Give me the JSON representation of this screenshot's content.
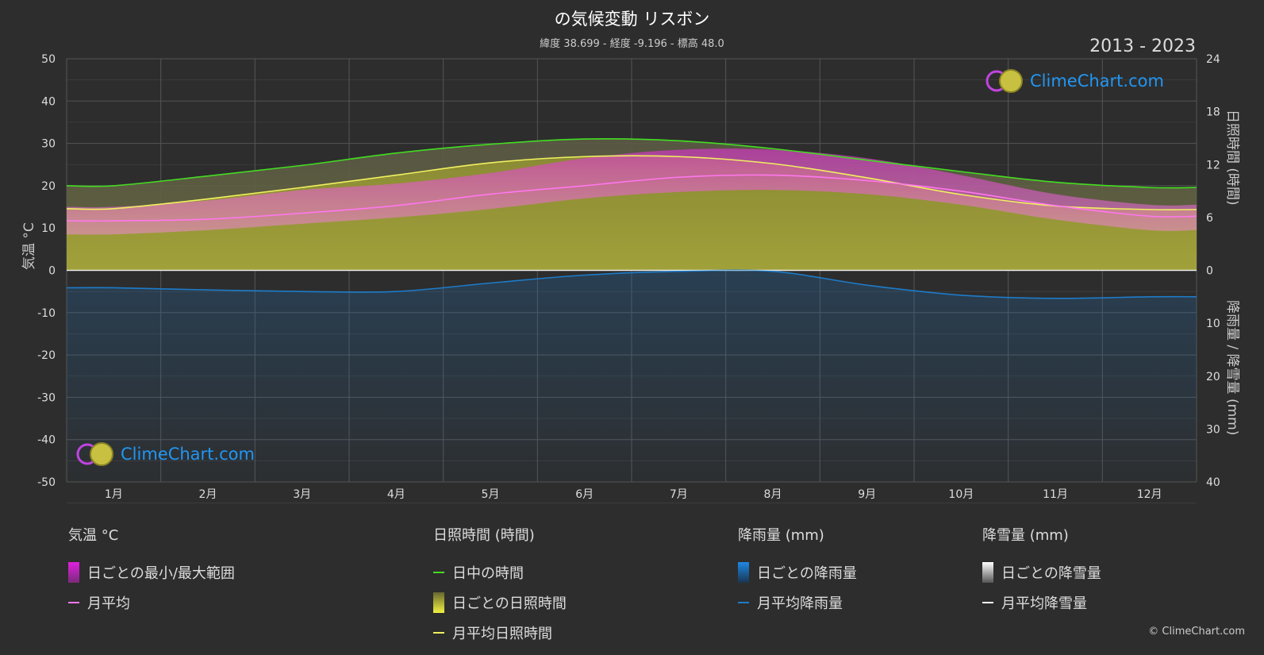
{
  "header": {
    "title": "の気候変動 リスボン",
    "subtitle": "緯度 38.699 - 経度 -9.196 - 標高 48.0",
    "years": "2013 - 2023"
  },
  "axes": {
    "left_title": "気温 °C",
    "right_top_title": "日照時間 (時間)",
    "right_bottom_title": "降雨量 / 降雪量 (mm)"
  },
  "logo_text": "ClimeChart.com",
  "copyright": "© ClimeChart.com",
  "legend": {
    "temperature": {
      "title": "気温 °C",
      "daily_range": "日ごとの最小/最大範囲",
      "monthly_avg": "月平均"
    },
    "sunshine": {
      "title": "日照時間 (時間)",
      "daylight": "日中の時間",
      "daily_sunshine": "日ごとの日照時間",
      "monthly_avg_sunshine": "月平均日照時間"
    },
    "rain": {
      "title": "降雨量 (mm)",
      "daily_rain": "日ごとの降雨量",
      "monthly_avg_rain": "月平均降雨量"
    },
    "snow": {
      "title": "降雪量 (mm)",
      "daily_snow": "日ごとの降雪量",
      "monthly_avg_snow": "月平均降雪量"
    }
  },
  "colors": {
    "background": "#2d2d2d",
    "daylight": "#44dd22",
    "sunshine_line": "#f0f060",
    "sunshine_fill": "#9a9a30",
    "temp_range": "#dd33cc",
    "temp_avg": "#ff77ee",
    "rain": "#1e7bc8",
    "snow": "#ffffff",
    "logo": "#2196f3"
  },
  "chart_data": {
    "type": "area",
    "categories": [
      "1月",
      "2月",
      "3月",
      "4月",
      "5月",
      "6月",
      "7月",
      "8月",
      "9月",
      "10月",
      "11月",
      "12月"
    ],
    "y_left": {
      "label": "気温 °C",
      "range": [
        -50,
        50
      ],
      "ticks": [
        50,
        40,
        30,
        20,
        10,
        0,
        -10,
        -20,
        -30,
        -40,
        -50
      ]
    },
    "y_right_sunshine": {
      "label": "日照時間 (時間)",
      "range": [
        0,
        24
      ],
      "ticks": [
        24,
        18,
        12,
        6,
        0
      ]
    },
    "y_right_precip": {
      "label": "降雨量 / 降雪量 (mm)",
      "range": [
        0,
        40
      ],
      "ticks": [
        0,
        10,
        20,
        30,
        40
      ]
    },
    "series": [
      {
        "name": "日中の時間",
        "axis": "sunshine",
        "values": [
          9.6,
          10.7,
          11.9,
          13.3,
          14.3,
          14.9,
          14.7,
          13.8,
          12.5,
          11.2,
          10.0,
          9.4
        ]
      },
      {
        "name": "月平均日照時間",
        "axis": "sunshine",
        "values": [
          7.0,
          8.1,
          9.4,
          10.8,
          12.2,
          12.9,
          12.9,
          12.1,
          10.5,
          8.6,
          7.3,
          6.9
        ]
      },
      {
        "name": "日ごとの最大気温",
        "axis": "temperature",
        "values": [
          15.0,
          16.5,
          19.0,
          20.5,
          23.0,
          26.5,
          28.5,
          28.5,
          26.5,
          22.5,
          18.0,
          15.5
        ]
      },
      {
        "name": "日ごとの最小気温",
        "axis": "temperature",
        "values": [
          8.5,
          9.5,
          11.0,
          12.5,
          14.5,
          17.0,
          18.5,
          19.0,
          18.0,
          15.5,
          12.0,
          9.5
        ]
      },
      {
        "name": "月平均",
        "axis": "temperature",
        "values": [
          11.7,
          12.1,
          13.5,
          15.3,
          18.0,
          20.0,
          22.0,
          22.5,
          21.2,
          18.7,
          15.3,
          12.8
        ]
      },
      {
        "name": "月平均降雨量",
        "axis": "precip",
        "values": [
          3.3,
          3.7,
          4.0,
          4.0,
          2.4,
          0.9,
          0.2,
          0.2,
          2.8,
          4.7,
          5.3,
          5.0
        ]
      },
      {
        "name": "月平均降雪量",
        "axis": "precip",
        "values": [
          0,
          0,
          0,
          0,
          0,
          0,
          0,
          0,
          0,
          0,
          0,
          0
        ]
      }
    ],
    "grid": true
  }
}
